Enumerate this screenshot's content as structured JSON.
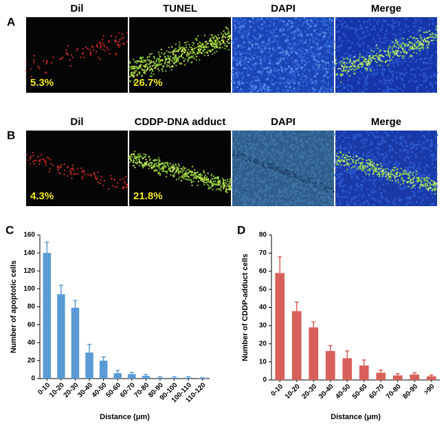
{
  "figure_panels": [
    {
      "letter": "A",
      "images": [
        {
          "title": "Dil",
          "percent": "5.3%"
        },
        {
          "title": "TUNEL",
          "percent": "26.7%"
        },
        {
          "title": "DAPI"
        },
        {
          "title": "Merge"
        }
      ]
    },
    {
      "letter": "B",
      "images": [
        {
          "title": "Dil",
          "percent": "4.3%"
        },
        {
          "title": "CDDP-DNA adduct",
          "percent": "21.8%"
        },
        {
          "title": "DAPI"
        },
        {
          "title": "Merge"
        }
      ]
    }
  ],
  "chart_data": [
    {
      "type": "bar",
      "panel_label": "C",
      "ylabel": "Number of apoptotic cells",
      "xlabel": "Distance (μm)",
      "categories": [
        "0-10",
        "10-20",
        "20-30",
        "30-40",
        "40-50",
        "50-60",
        "60-70",
        "70-80",
        "80-90",
        "90-100",
        "100-110",
        "110-120"
      ],
      "values": [
        140,
        94,
        79,
        29,
        20,
        6,
        5,
        3,
        1,
        1,
        1,
        0.5
      ],
      "errors": [
        12,
        10,
        8,
        9,
        4,
        3,
        2,
        1.5,
        1,
        1,
        1,
        0.5
      ],
      "color": "#5b9bd5",
      "ylim": [
        0,
        160
      ],
      "yticks": [
        0,
        20,
        40,
        60,
        80,
        100,
        120,
        140,
        160
      ]
    },
    {
      "type": "bar",
      "panel_label": "D",
      "ylabel": "Number of CDDP-adduct cells",
      "xlabel": "Distance (μm)",
      "categories": [
        "0-10",
        "10-20",
        "20-30",
        "30-40",
        "40-50",
        "50-60",
        "60-70",
        "70-80",
        "80-90",
        ">90"
      ],
      "values": [
        59,
        38,
        29,
        16,
        12,
        8,
        4,
        2.5,
        3,
        2
      ],
      "errors": [
        9,
        5,
        3,
        3,
        4,
        3,
        1.5,
        1,
        1,
        0.7
      ],
      "color": "#d9605a",
      "ylim": [
        0,
        80
      ],
      "yticks": [
        0,
        10,
        20,
        30,
        40,
        50,
        60,
        70,
        80
      ]
    }
  ]
}
